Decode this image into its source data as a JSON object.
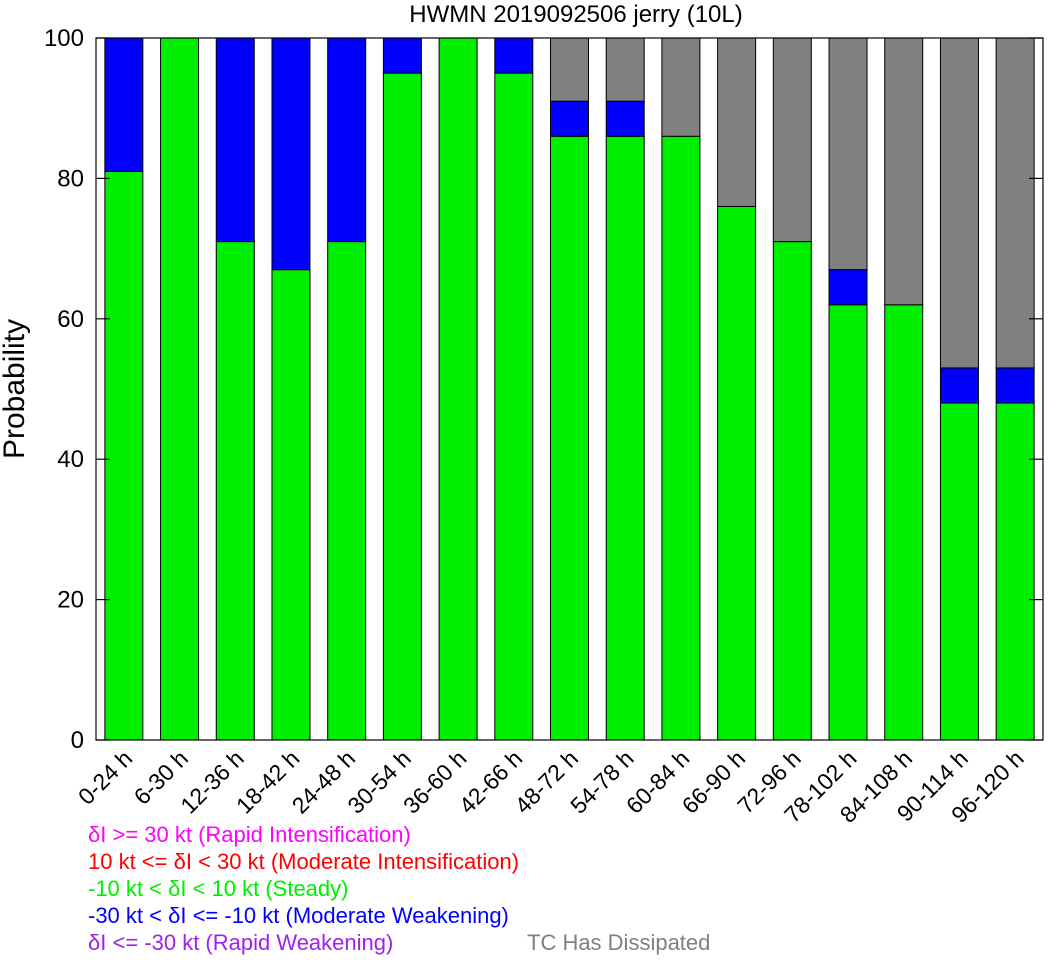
{
  "chart_data": {
    "type": "bar",
    "stacked": true,
    "title": "HWMN 2019092506 jerry (10L)",
    "xlabel": "",
    "ylabel": "Probability",
    "ylim": [
      0,
      100
    ],
    "yticks": [
      "0",
      "20",
      "40",
      "60",
      "80",
      "100"
    ],
    "grid": false,
    "categories": [
      "0-24 h",
      "6-30 h",
      "12-36 h",
      "18-42 h",
      "24-48 h",
      "30-54 h",
      "36-60 h",
      "42-66 h",
      "48-72 h",
      "54-78 h",
      "60-84 h",
      "66-90 h",
      "72-96 h",
      "78-102 h",
      "84-108 h",
      "90-114 h",
      "96-120 h"
    ],
    "series": [
      {
        "name": "-10 kt < δI < 10 kt (Steady)",
        "color": "#00ee00",
        "values": [
          81,
          100,
          71,
          67,
          71,
          95,
          100,
          95,
          86,
          86,
          86,
          76,
          71,
          62,
          62,
          48,
          48
        ]
      },
      {
        "name": "-30 kt < δI <= -10 kt (Moderate Weakening)",
        "color": "#0000ff",
        "values": [
          19,
          0,
          29,
          33,
          29,
          5,
          0,
          5,
          5,
          5,
          0,
          0,
          0,
          5,
          0,
          5,
          5
        ]
      },
      {
        "name": "TC Has Dissipated",
        "color": "#808080",
        "values": [
          0,
          0,
          0,
          0,
          0,
          0,
          0,
          0,
          9,
          9,
          14,
          24,
          29,
          33,
          38,
          47,
          47
        ]
      }
    ]
  },
  "legend": {
    "items": [
      {
        "text": "δI >= 30 kt (Rapid Intensification)",
        "color": "#ff00ff"
      },
      {
        "text": "10 kt <= δI < 30 kt (Moderate Intensification)",
        "color": "#ff0000"
      },
      {
        "text": "-10 kt < δI < 10 kt (Steady)",
        "color": "#00ee00"
      },
      {
        "text": "-30 kt < δI <= -10 kt (Moderate Weakening)",
        "color": "#0000ff"
      },
      {
        "text": "δI <= -30 kt (Rapid Weakening)",
        "color": "#a020f0"
      }
    ],
    "extra": {
      "text": "TC Has Dissipated",
      "color": "#808080"
    }
  }
}
